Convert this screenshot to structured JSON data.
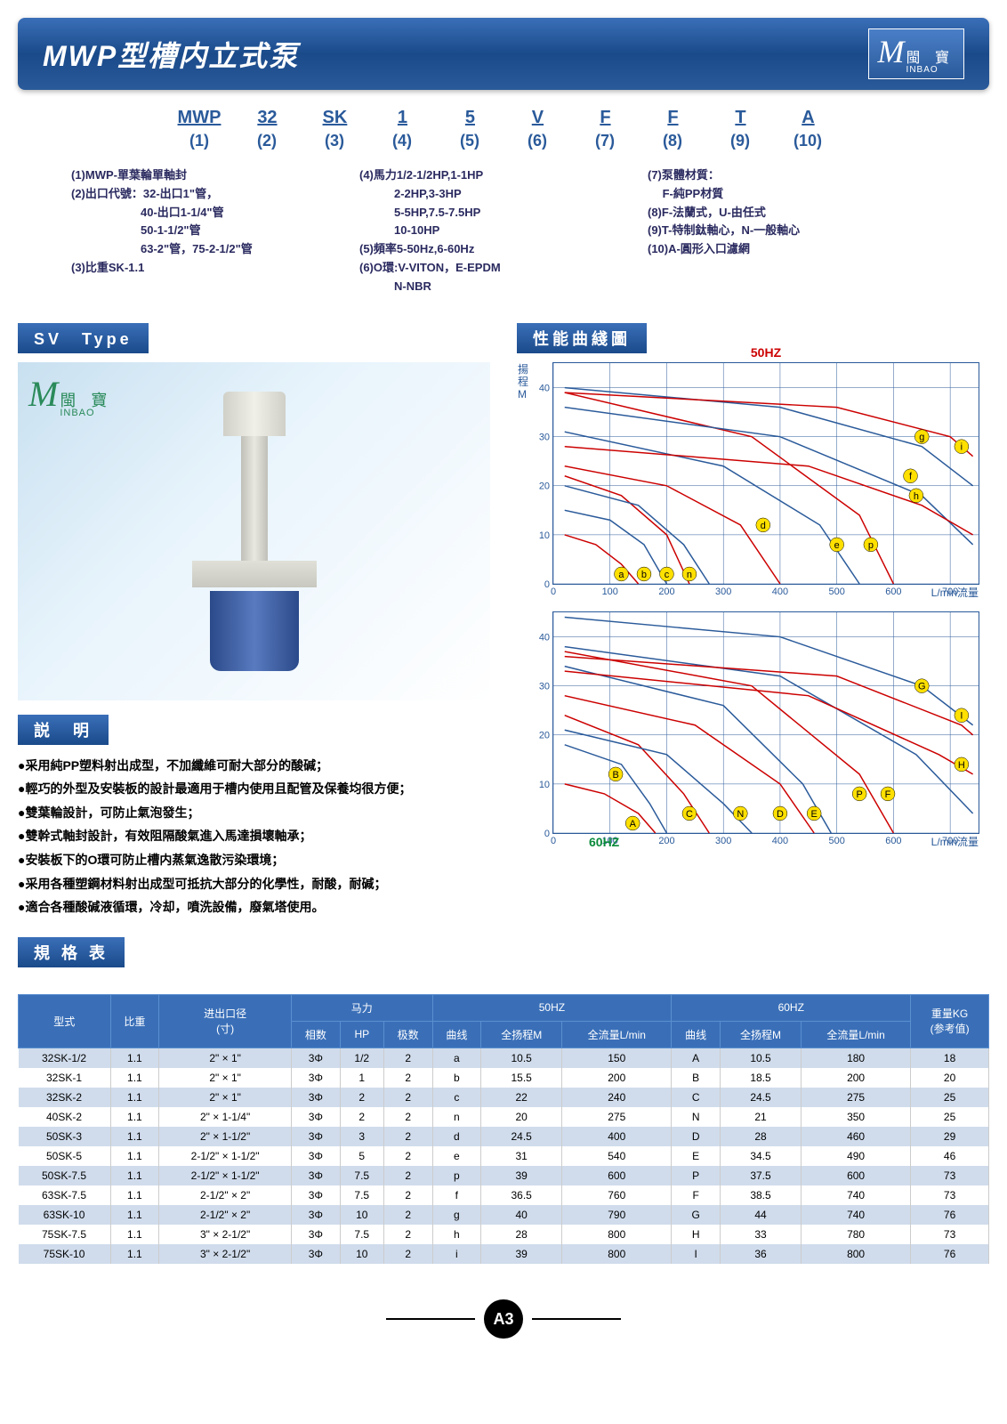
{
  "header": {
    "title": "MWP型槽内立式泵",
    "logo_cn": "閩 寶",
    "logo_en": "INBAO"
  },
  "model": {
    "parts": [
      "MWP",
      "32",
      "SK",
      "1",
      "5",
      "V",
      "F",
      "F",
      "T",
      "A"
    ],
    "nums": [
      "(1)",
      "(2)",
      "(3)",
      "(4)",
      "(5)",
      "(6)",
      "(7)",
      "(8)",
      "(9)",
      "(10)"
    ]
  },
  "legend": {
    "col1": [
      "(1)MWP-單葉輪單軸封",
      "(2)出口代號：32-出口1\"管，",
      "　　　　　　40-出口1-1/4\"管",
      "　　　　　　50-1-1/2\"管",
      "　　　　　　63-2\"管，75-2-1/2\"管",
      "(3)比重SK-1.1"
    ],
    "col2": [
      "(4)馬力1/2-1/2HP,1-1HP",
      "　　　2-2HP,3-3HP",
      "　　　5-5HP,7.5-7.5HP",
      "　　　10-10HP",
      "(5)頻率5-50Hz,6-60Hz",
      "(6)O環:V-VITON，E-EPDM",
      "　　　N-NBR"
    ],
    "col3": [
      "(7)泵體材質：",
      "　 F-純PP材質",
      "(8)F-法蘭式，U-由任式",
      "(9)T-特制鈦軸心，N-一般軸心",
      "(10)A-圓形入口濾網"
    ]
  },
  "sv_label": "SV　Type",
  "perf_label": "性能曲綫圖",
  "desc_label": "説　明",
  "spec_label": "規 格 表",
  "desc_lines": [
    "●采用純PP塑料射出成型，不加纖維可耐大部分的酸碱；",
    "●輕巧的外型及安裝板的設計最適用于槽内使用且配管及保養均很方便；",
    "●雙葉輪設計，可防止氣泡發生；",
    "●雙幹式軸封設計，有效阻隔酸氣進入馬達損壞軸承；",
    "●安裝板下的O環可防止槽内蒸氣逸散污染環境；",
    "●采用各種塑鋼材料射出成型可抵抗大部分的化學性，耐酸，耐碱；",
    "●適合各種酸碱液循環，冷却，噴洗設備，廢氣塔使用。"
  ],
  "chart50": {
    "title": "50HZ",
    "ylabel": "揚\n程\nM",
    "xlabel": "L/min流量",
    "xlim": [
      0,
      750
    ],
    "ylim": [
      0,
      45
    ],
    "xticks": [
      0,
      100,
      200,
      300,
      400,
      500,
      600,
      700
    ],
    "yticks": [
      0,
      10,
      20,
      30,
      40
    ],
    "curves": [
      {
        "label": "a",
        "color": "red",
        "pts": [
          [
            20,
            10
          ],
          [
            75,
            8
          ],
          [
            120,
            4
          ],
          [
            150,
            0
          ]
        ]
      },
      {
        "label": "b",
        "color": "blue",
        "pts": [
          [
            20,
            15
          ],
          [
            100,
            13
          ],
          [
            160,
            8
          ],
          [
            200,
            0
          ]
        ]
      },
      {
        "label": "c",
        "color": "red",
        "pts": [
          [
            20,
            22
          ],
          [
            120,
            18
          ],
          [
            200,
            10
          ],
          [
            240,
            0
          ]
        ]
      },
      {
        "label": "n",
        "color": "blue",
        "pts": [
          [
            20,
            20
          ],
          [
            150,
            16
          ],
          [
            230,
            8
          ],
          [
            275,
            0
          ]
        ]
      },
      {
        "label": "d",
        "color": "red",
        "pts": [
          [
            20,
            24
          ],
          [
            200,
            20
          ],
          [
            330,
            12
          ],
          [
            400,
            0
          ]
        ]
      },
      {
        "label": "e",
        "color": "blue",
        "pts": [
          [
            20,
            31
          ],
          [
            300,
            24
          ],
          [
            470,
            12
          ],
          [
            540,
            0
          ]
        ]
      },
      {
        "label": "p",
        "color": "red",
        "pts": [
          [
            20,
            39
          ],
          [
            350,
            30
          ],
          [
            540,
            14
          ],
          [
            600,
            0
          ]
        ]
      },
      {
        "label": "f",
        "color": "blue",
        "pts": [
          [
            20,
            36
          ],
          [
            400,
            30
          ],
          [
            650,
            18
          ],
          [
            740,
            8
          ]
        ]
      },
      {
        "label": "h",
        "color": "red",
        "pts": [
          [
            20,
            28
          ],
          [
            450,
            24
          ],
          [
            650,
            16
          ],
          [
            740,
            10
          ]
        ]
      },
      {
        "label": "g",
        "color": "blue",
        "pts": [
          [
            20,
            40
          ],
          [
            400,
            36
          ],
          [
            650,
            28
          ],
          [
            740,
            20
          ]
        ]
      },
      {
        "label": "i",
        "color": "red",
        "pts": [
          [
            20,
            39
          ],
          [
            500,
            36
          ],
          [
            700,
            30
          ],
          [
            740,
            26
          ]
        ]
      }
    ],
    "markers": [
      {
        "x": 120,
        "y": 2,
        "t": "a"
      },
      {
        "x": 160,
        "y": 2,
        "t": "b"
      },
      {
        "x": 200,
        "y": 2,
        "t": "c"
      },
      {
        "x": 240,
        "y": 2,
        "t": "n"
      },
      {
        "x": 370,
        "y": 12,
        "t": "d"
      },
      {
        "x": 500,
        "y": 8,
        "t": "e"
      },
      {
        "x": 560,
        "y": 8,
        "t": "p"
      },
      {
        "x": 630,
        "y": 22,
        "t": "f"
      },
      {
        "x": 640,
        "y": 18,
        "t": "h"
      },
      {
        "x": 650,
        "y": 30,
        "t": "g"
      },
      {
        "x": 720,
        "y": 28,
        "t": "i"
      }
    ]
  },
  "chart60": {
    "title": "60HZ",
    "ylabel": "",
    "xlabel": "L/min流量",
    "xlim": [
      0,
      750
    ],
    "ylim": [
      0,
      45
    ],
    "xticks": [
      0,
      100,
      200,
      300,
      400,
      500,
      600,
      700
    ],
    "yticks": [
      0,
      10,
      20,
      30,
      40
    ],
    "curves": [
      {
        "label": "A",
        "color": "red",
        "pts": [
          [
            20,
            10
          ],
          [
            90,
            8
          ],
          [
            150,
            4
          ],
          [
            180,
            0
          ]
        ]
      },
      {
        "label": "B",
        "color": "blue",
        "pts": [
          [
            20,
            18
          ],
          [
            120,
            14
          ],
          [
            170,
            6
          ],
          [
            200,
            0
          ]
        ]
      },
      {
        "label": "C",
        "color": "red",
        "pts": [
          [
            20,
            24
          ],
          [
            150,
            18
          ],
          [
            230,
            8
          ],
          [
            275,
            0
          ]
        ]
      },
      {
        "label": "N",
        "color": "blue",
        "pts": [
          [
            20,
            21
          ],
          [
            200,
            16
          ],
          [
            300,
            6
          ],
          [
            350,
            0
          ]
        ]
      },
      {
        "label": "D",
        "color": "red",
        "pts": [
          [
            20,
            28
          ],
          [
            250,
            22
          ],
          [
            400,
            10
          ],
          [
            460,
            0
          ]
        ]
      },
      {
        "label": "E",
        "color": "blue",
        "pts": [
          [
            20,
            34
          ],
          [
            300,
            26
          ],
          [
            440,
            10
          ],
          [
            490,
            0
          ]
        ]
      },
      {
        "label": "P",
        "color": "red",
        "pts": [
          [
            20,
            37
          ],
          [
            350,
            30
          ],
          [
            540,
            12
          ],
          [
            600,
            0
          ]
        ]
      },
      {
        "label": "F",
        "color": "blue",
        "pts": [
          [
            20,
            38
          ],
          [
            400,
            32
          ],
          [
            640,
            16
          ],
          [
            740,
            4
          ]
        ]
      },
      {
        "label": "H",
        "color": "red",
        "pts": [
          [
            20,
            33
          ],
          [
            450,
            28
          ],
          [
            680,
            16
          ],
          [
            740,
            12
          ]
        ]
      },
      {
        "label": "G",
        "color": "blue",
        "pts": [
          [
            20,
            44
          ],
          [
            400,
            40
          ],
          [
            650,
            30
          ],
          [
            740,
            22
          ]
        ]
      },
      {
        "label": "I",
        "color": "red",
        "pts": [
          [
            20,
            36
          ],
          [
            500,
            32
          ],
          [
            720,
            22
          ],
          [
            740,
            20
          ]
        ]
      }
    ],
    "markers": [
      {
        "x": 140,
        "y": 2,
        "t": "A"
      },
      {
        "x": 110,
        "y": 12,
        "t": "B"
      },
      {
        "x": 240,
        "y": 4,
        "t": "C"
      },
      {
        "x": 330,
        "y": 4,
        "t": "N"
      },
      {
        "x": 400,
        "y": 4,
        "t": "D"
      },
      {
        "x": 460,
        "y": 4,
        "t": "E"
      },
      {
        "x": 540,
        "y": 8,
        "t": "P"
      },
      {
        "x": 590,
        "y": 8,
        "t": "F"
      },
      {
        "x": 720,
        "y": 14,
        "t": "H"
      },
      {
        "x": 650,
        "y": 30,
        "t": "G"
      },
      {
        "x": 720,
        "y": 24,
        "t": "I"
      }
    ]
  },
  "table": {
    "head1": [
      "型式",
      "比重",
      "进出口径\n(寸)",
      "马力",
      "",
      "",
      "50HZ",
      "",
      "",
      "60HZ",
      "",
      "",
      "重量KG\n(参考值)"
    ],
    "head2": [
      "",
      "",
      "",
      "相数",
      "HP",
      "极数",
      "曲线",
      "全扬程M",
      "全流量L/min",
      "曲线",
      "全扬程M",
      "全流量L/min",
      ""
    ],
    "rows": [
      [
        "32SK-1/2",
        "1.1",
        "2\" × 1\"",
        "3Φ",
        "1/2",
        "2",
        "a",
        "10.5",
        "150",
        "A",
        "10.5",
        "180",
        "18"
      ],
      [
        "32SK-1",
        "1.1",
        "2\" × 1\"",
        "3Φ",
        "1",
        "2",
        "b",
        "15.5",
        "200",
        "B",
        "18.5",
        "200",
        "20"
      ],
      [
        "32SK-2",
        "1.1",
        "2\" × 1\"",
        "3Φ",
        "2",
        "2",
        "c",
        "22",
        "240",
        "C",
        "24.5",
        "275",
        "25"
      ],
      [
        "40SK-2",
        "1.1",
        "2\" × 1-1/4\"",
        "3Φ",
        "2",
        "2",
        "n",
        "20",
        "275",
        "N",
        "21",
        "350",
        "25"
      ],
      [
        "50SK-3",
        "1.1",
        "2\" × 1-1/2\"",
        "3Φ",
        "3",
        "2",
        "d",
        "24.5",
        "400",
        "D",
        "28",
        "460",
        "29"
      ],
      [
        "50SK-5",
        "1.1",
        "2-1/2\" × 1-1/2\"",
        "3Φ",
        "5",
        "2",
        "e",
        "31",
        "540",
        "E",
        "34.5",
        "490",
        "46"
      ],
      [
        "50SK-7.5",
        "1.1",
        "2-1/2\" × 1-1/2\"",
        "3Φ",
        "7.5",
        "2",
        "p",
        "39",
        "600",
        "P",
        "37.5",
        "600",
        "73"
      ],
      [
        "63SK-7.5",
        "1.1",
        "2-1/2\" × 2\"",
        "3Φ",
        "7.5",
        "2",
        "f",
        "36.5",
        "760",
        "F",
        "38.5",
        "740",
        "73"
      ],
      [
        "63SK-10",
        "1.1",
        "2-1/2\" × 2\"",
        "3Φ",
        "10",
        "2",
        "g",
        "40",
        "790",
        "G",
        "44",
        "740",
        "76"
      ],
      [
        "75SK-7.5",
        "1.1",
        "3\" × 2-1/2\"",
        "3Φ",
        "7.5",
        "2",
        "h",
        "28",
        "800",
        "H",
        "33",
        "780",
        "73"
      ],
      [
        "75SK-10",
        "1.1",
        "3\" × 2-1/2\"",
        "3Φ",
        "10",
        "2",
        "i",
        "39",
        "800",
        "I",
        "36",
        "800",
        "76"
      ]
    ]
  },
  "page": "A3"
}
